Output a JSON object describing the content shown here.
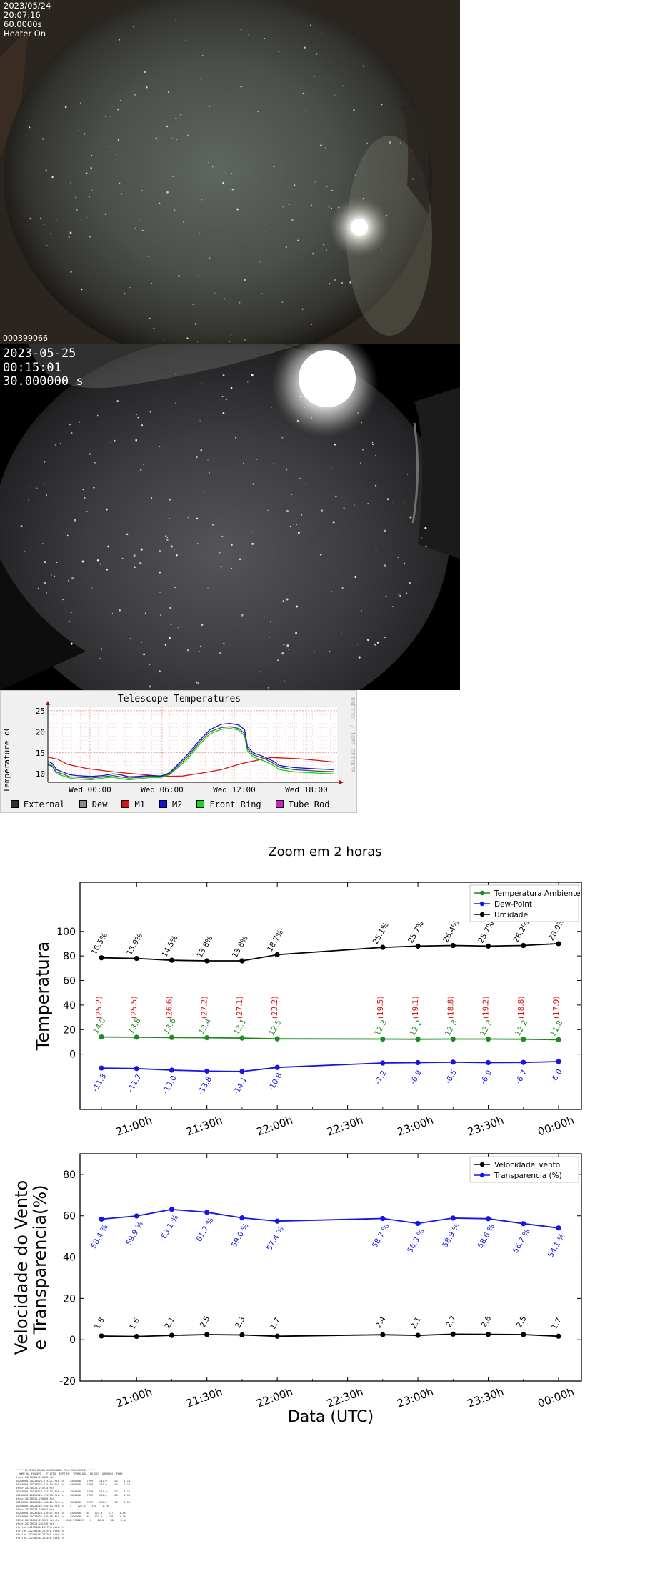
{
  "camera1": {
    "date": "2023/05/24",
    "time": "20:07:16",
    "exposure": "60.0000s",
    "heater": "Heater On",
    "image_id": "000399066"
  },
  "camera2": {
    "date": "2023-05-25",
    "time": "00:15:01",
    "exposure": "30.000000 s"
  },
  "telescope_chart": {
    "title": "Telescope Temperatures",
    "ylabel": "Temperature oC",
    "watermark": "RRDTOOL / TOBI OETIKER",
    "yticks": [
      "25",
      "20",
      "15",
      "10"
    ],
    "xticks": [
      "Wed 00:00",
      "Wed 06:00",
      "Wed 12:00",
      "Wed 18:00"
    ],
    "legend": [
      {
        "label": "External",
        "color": "#303030"
      },
      {
        "label": "Dew",
        "color": "#8a8a8a"
      },
      {
        "label": "M1",
        "color": "#e01010"
      },
      {
        "label": "M2",
        "color": "#1010e0"
      },
      {
        "label": "Front Ring",
        "color": "#10dd10"
      },
      {
        "label": "Tube Rod",
        "color": "#d020d0"
      }
    ],
    "colors": {
      "M1": "#e01010",
      "M2": "#1010e0",
      "Front Ring": "#10dd10",
      "Dew": "#505050"
    }
  },
  "chart_data": [
    {
      "type": "line",
      "title": "Zoom em 2 horas",
      "ylabel": "Temperatura",
      "xlabel": "",
      "ylim": [
        -45,
        140
      ],
      "yticks": [
        0,
        20,
        40,
        60,
        80,
        100
      ],
      "xticks": [
        "21:00h",
        "21:30h",
        "22:00h",
        "22:30h",
        "23:00h",
        "23:30h",
        "00:00h"
      ],
      "x": [
        "20:45",
        "21:00",
        "21:15",
        "21:30",
        "21:45",
        "22:00",
        "22:45",
        "23:00",
        "23:15",
        "23:30",
        "23:45",
        "00:00"
      ],
      "legend_position": "top-right",
      "series": [
        {
          "name": "Temperatura Ambiente",
          "color": "#1f8a1f",
          "values": [
            14.0,
            13.8,
            13.6,
            13.4,
            13.1,
            12.5,
            12.3,
            12.2,
            12.3,
            12.3,
            12.2,
            11.8
          ],
          "labels": [
            "14.0",
            "13.8",
            "13.6",
            "13.4",
            "13.1",
            "12.5",
            "12.3",
            "12.2",
            "12.3",
            "12.3",
            "12.2",
            "11.8"
          ]
        },
        {
          "name": "Dew-Point",
          "color": "#1515e6",
          "values": [
            -11.3,
            -11.7,
            -13.0,
            -13.8,
            -14.1,
            -10.8,
            -7.2,
            -6.9,
            -6.5,
            -6.9,
            -6.7,
            -6.0
          ],
          "labels": [
            "-11.3",
            "-11.7",
            "-13.0",
            "-13.8",
            "-14.1",
            "-10.8",
            "-7.2",
            "-6.9",
            "-6.5",
            "-6.9",
            "-6.7",
            "-6.0"
          ]
        },
        {
          "name": "Umidade",
          "color": "#000000",
          "values": [
            78.5,
            78.0,
            76.5,
            76.0,
            76.0,
            81.0,
            87.0,
            88.0,
            88.5,
            88.0,
            88.5,
            90.0
          ],
          "labels": [
            "16.5%",
            "15.9%",
            "14.5%",
            "13.8%",
            "13.8%",
            "18.7%",
            "25.1%",
            "25.7%",
            "26.4%",
            "25.7%",
            "26.2%",
            "28.0%"
          ]
        }
      ],
      "annotations_red": [
        "(25.2)",
        "(25.5)",
        "(26.6)",
        "(27.2)",
        "(27.1)",
        "(23.2)",
        "(19.5)",
        "(19.1)",
        "(18.8)",
        "(19.2)",
        "(18.8)",
        "(17.9)"
      ],
      "annotation_color": "#e01010"
    },
    {
      "type": "line",
      "title": "",
      "ylabel_line1": "Velocidade do Vento",
      "ylabel_line2": "e Transparencia(%)",
      "xlabel": "Data (UTC)",
      "ylim": [
        -20,
        90
      ],
      "yticks": [
        -20,
        0,
        20,
        40,
        60,
        80
      ],
      "xticks": [
        "21:00h",
        "21:30h",
        "22:00h",
        "22:30h",
        "23:00h",
        "23:30h",
        "00:00h"
      ],
      "x": [
        "20:45",
        "21:00",
        "21:15",
        "21:30",
        "21:45",
        "22:00",
        "22:45",
        "23:00",
        "23:15",
        "23:30",
        "23:45",
        "00:00"
      ],
      "legend_position": "top-right",
      "series": [
        {
          "name": "Velocidade_vento",
          "color": "#000000",
          "values": [
            1.8,
            1.6,
            2.1,
            2.5,
            2.3,
            1.7,
            2.4,
            2.1,
            2.7,
            2.6,
            2.5,
            1.7
          ],
          "labels": [
            "1.8",
            "1.6",
            "2.1",
            "2.5",
            "2.3",
            "1.7",
            "2.4",
            "2.1",
            "2.7",
            "2.6",
            "2.5",
            "1.7"
          ]
        },
        {
          "name": "Transparencia (%)",
          "color": "#1515e6",
          "values": [
            58.4,
            59.9,
            63.1,
            61.7,
            59.0,
            57.4,
            58.7,
            56.3,
            58.9,
            58.6,
            56.2,
            54.1
          ],
          "labels": [
            "58.4 %",
            "59.9 %",
            "63.1 %",
            "61.7 %",
            "59.0 %",
            "57.4 %",
            "58.7 %",
            "56.3 %",
            "58.9 %",
            "58.6 %",
            "56.2 %",
            "54.1 %"
          ]
        }
      ]
    }
  ]
}
